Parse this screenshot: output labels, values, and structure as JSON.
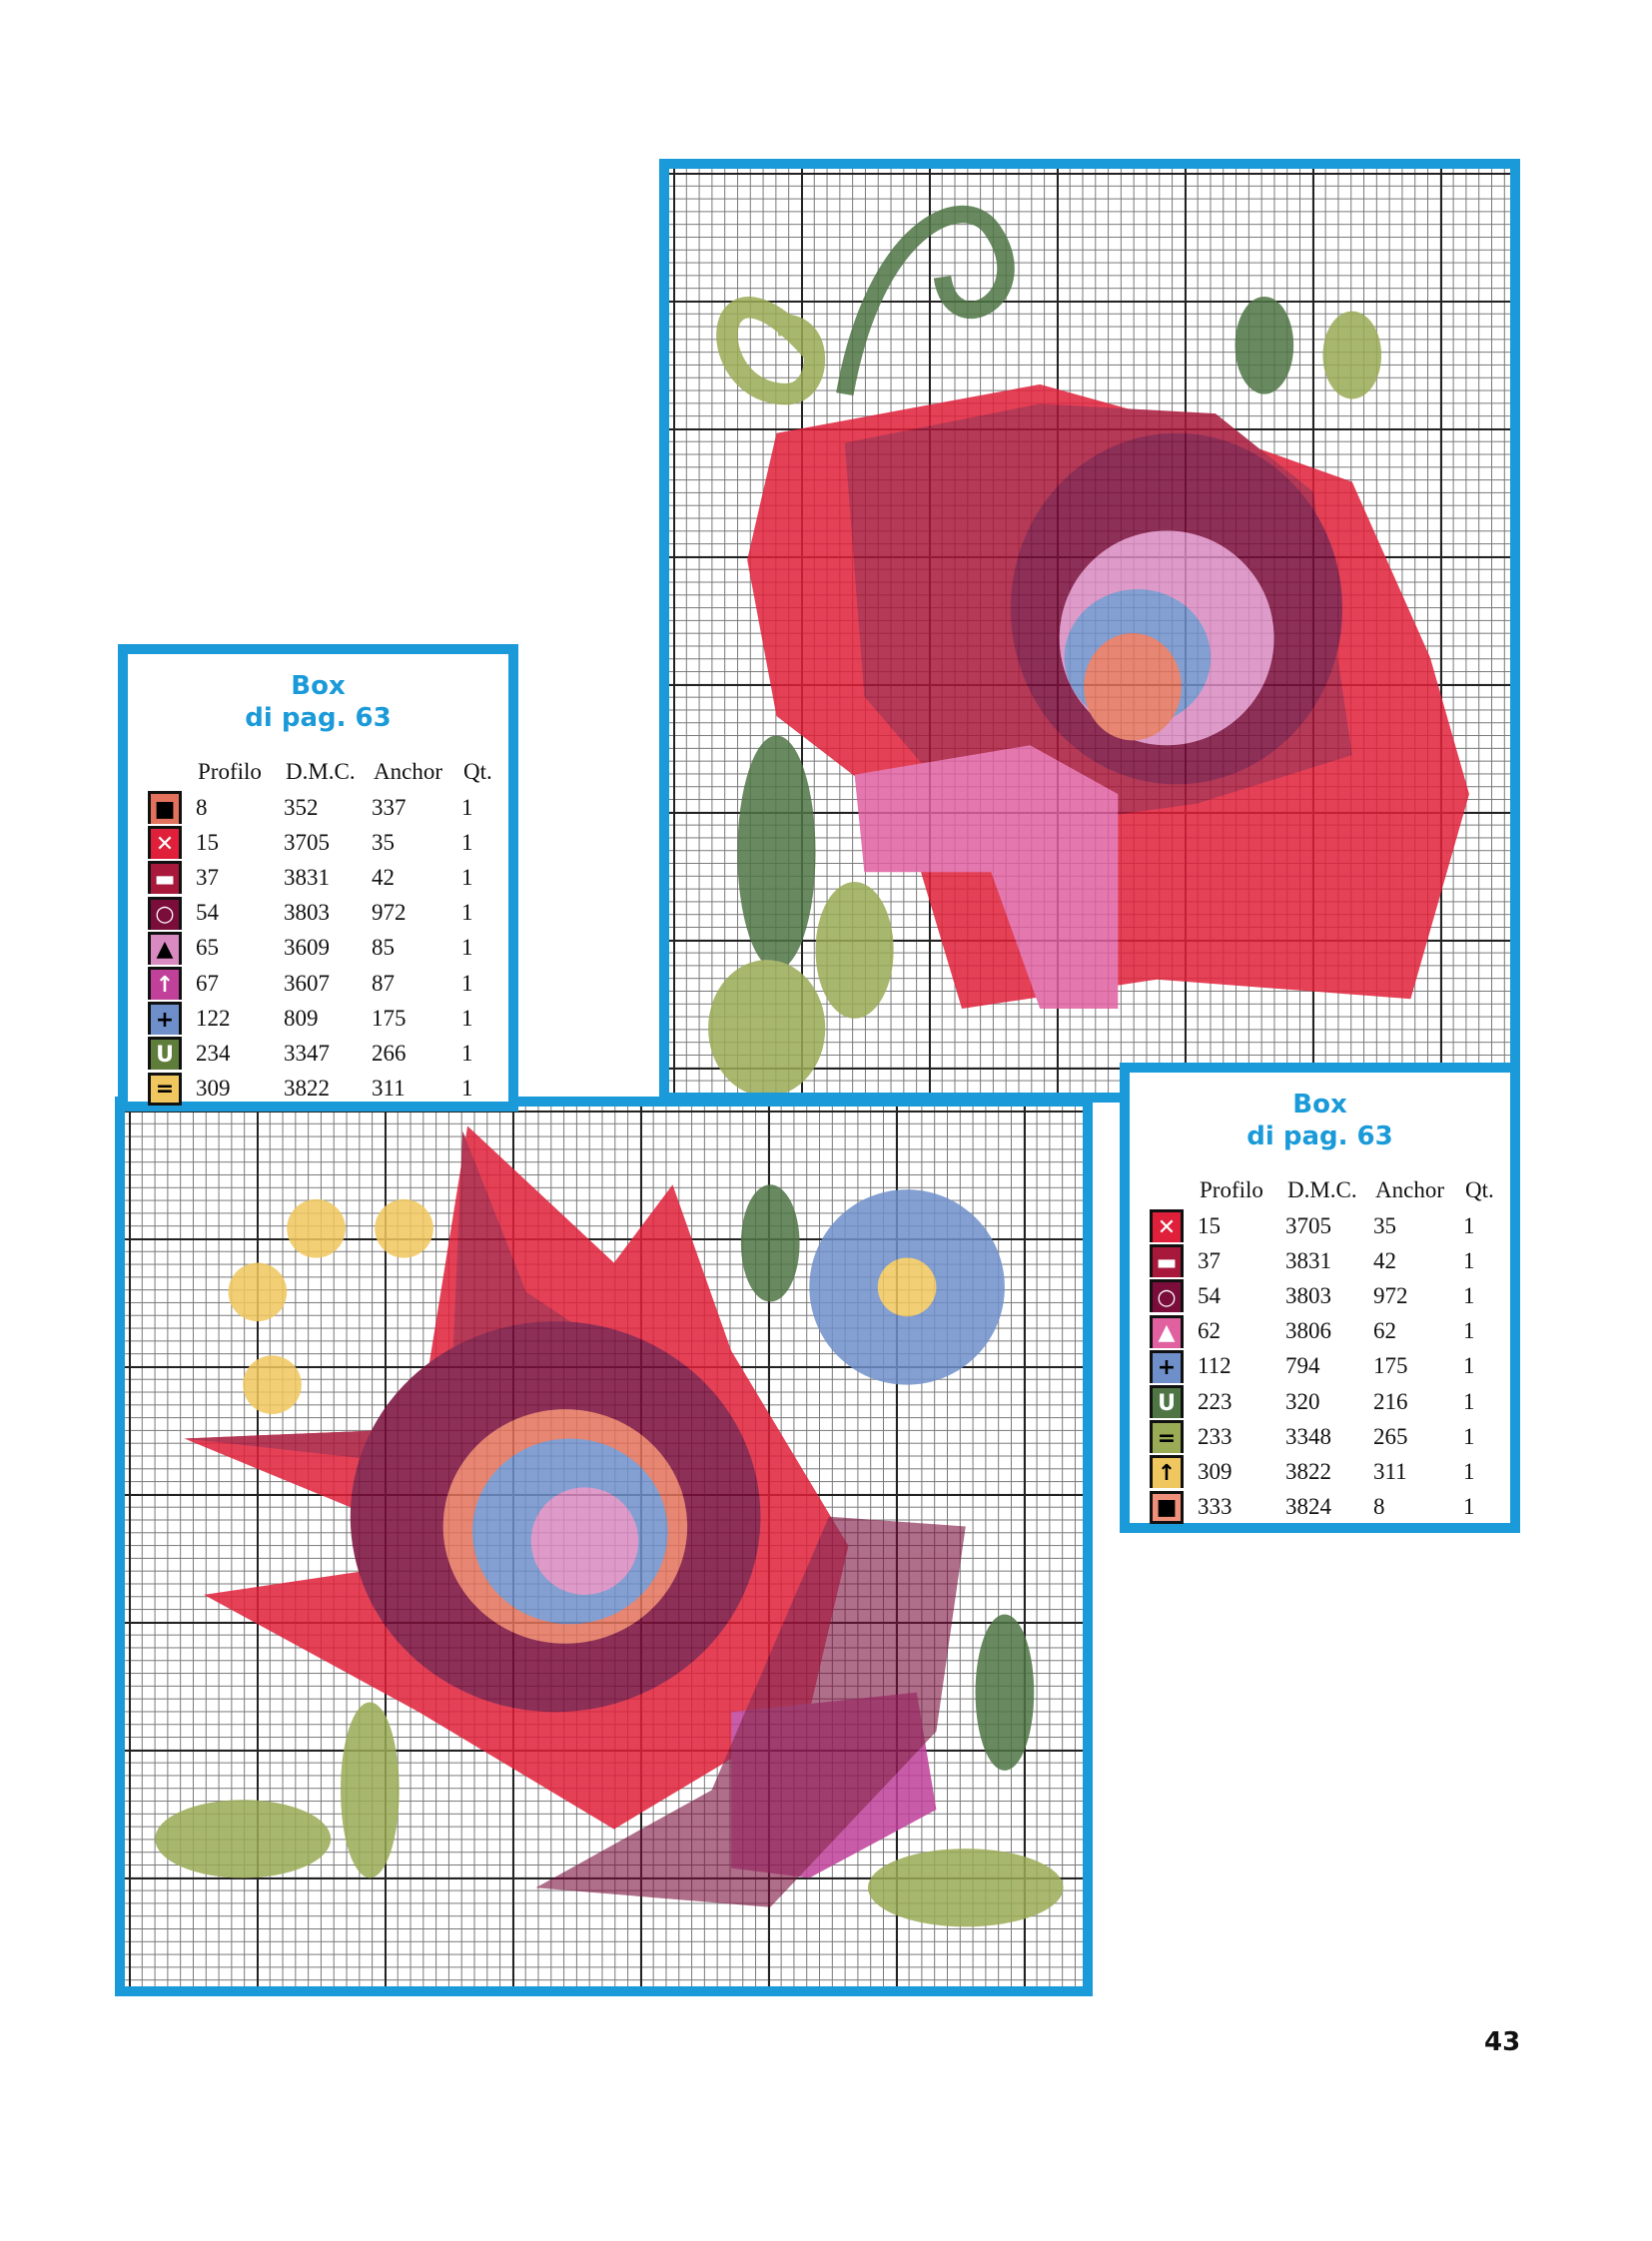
{
  "page_number": "43",
  "colors": {
    "frame": "#1a9ad9"
  },
  "legend_left": {
    "title_line1": "Box",
    "title_line2": "di pag. 63",
    "headers": [
      "Profilo",
      "D.M.C.",
      "Anchor",
      "Qt."
    ],
    "rows": [
      {
        "symbol": "■",
        "symbol_name": "square",
        "color": "#e2725b",
        "fg": "#000",
        "profilo": "8",
        "dmc": "352",
        "anchor": "337",
        "qt": "1"
      },
      {
        "symbol": "✕",
        "symbol_name": "cross",
        "color": "#e0203a",
        "fg": "#fff",
        "profilo": "15",
        "dmc": "3705",
        "anchor": "35",
        "qt": "1"
      },
      {
        "symbol": "▬",
        "symbol_name": "dash",
        "color": "#a8183a",
        "fg": "#fff",
        "profilo": "37",
        "dmc": "3831",
        "anchor": "42",
        "qt": "1"
      },
      {
        "symbol": "○",
        "symbol_name": "circle",
        "color": "#7a0d3a",
        "fg": "#fff",
        "profilo": "54",
        "dmc": "3803",
        "anchor": "972",
        "qt": "1"
      },
      {
        "symbol": "▲",
        "symbol_name": "triangle",
        "color": "#d98ac0",
        "fg": "#000",
        "profilo": "65",
        "dmc": "3609",
        "anchor": "85",
        "qt": "1"
      },
      {
        "symbol": "↑",
        "symbol_name": "arrow-up",
        "color": "#c0409a",
        "fg": "#fff",
        "profilo": "67",
        "dmc": "3607",
        "anchor": "87",
        "qt": "1"
      },
      {
        "symbol": "+",
        "symbol_name": "plus",
        "color": "#6f8fca",
        "fg": "#000",
        "profilo": "122",
        "dmc": "809",
        "anchor": "175",
        "qt": "1"
      },
      {
        "symbol": "U",
        "symbol_name": "u",
        "color": "#5e7d3a",
        "fg": "#fff",
        "profilo": "234",
        "dmc": "3347",
        "anchor": "266",
        "qt": "1"
      },
      {
        "symbol": "=",
        "symbol_name": "equals",
        "color": "#f0c75e",
        "fg": "#000",
        "profilo": "309",
        "dmc": "3822",
        "anchor": "311",
        "qt": "1"
      }
    ]
  },
  "legend_right": {
    "title_line1": "Box",
    "title_line2": "di pag. 63",
    "headers": [
      "Profilo",
      "D.M.C.",
      "Anchor",
      "Qt."
    ],
    "rows": [
      {
        "symbol": "✕",
        "symbol_name": "cross",
        "color": "#e0203a",
        "fg": "#fff",
        "profilo": "15",
        "dmc": "3705",
        "anchor": "35",
        "qt": "1"
      },
      {
        "symbol": "▬",
        "symbol_name": "dash",
        "color": "#a8183a",
        "fg": "#fff",
        "profilo": "37",
        "dmc": "3831",
        "anchor": "42",
        "qt": "1"
      },
      {
        "symbol": "○",
        "symbol_name": "circle",
        "color": "#7a0d3a",
        "fg": "#fff",
        "profilo": "54",
        "dmc": "3803",
        "anchor": "972",
        "qt": "1"
      },
      {
        "symbol": "▲",
        "symbol_name": "triangle",
        "color": "#e060a0",
        "fg": "#fff",
        "profilo": "62",
        "dmc": "3806",
        "anchor": "62",
        "qt": "1"
      },
      {
        "symbol": "+",
        "symbol_name": "plus",
        "color": "#6f8fca",
        "fg": "#000",
        "profilo": "112",
        "dmc": "794",
        "anchor": "175",
        "qt": "1"
      },
      {
        "symbol": "U",
        "symbol_name": "u",
        "color": "#4f7545",
        "fg": "#fff",
        "profilo": "223",
        "dmc": "320",
        "anchor": "216",
        "qt": "1"
      },
      {
        "symbol": "=",
        "symbol_name": "equals",
        "color": "#9aab55",
        "fg": "#000",
        "profilo": "233",
        "dmc": "3348",
        "anchor": "265",
        "qt": "1"
      },
      {
        "symbol": "↑",
        "symbol_name": "arrow-up",
        "color": "#f0c75e",
        "fg": "#000",
        "profilo": "309",
        "dmc": "3822",
        "anchor": "311",
        "qt": "1"
      },
      {
        "symbol": "■",
        "symbol_name": "square",
        "color": "#f0907a",
        "fg": "#000",
        "profilo": "333",
        "dmc": "3824",
        "anchor": "8",
        "qt": "1"
      }
    ]
  }
}
